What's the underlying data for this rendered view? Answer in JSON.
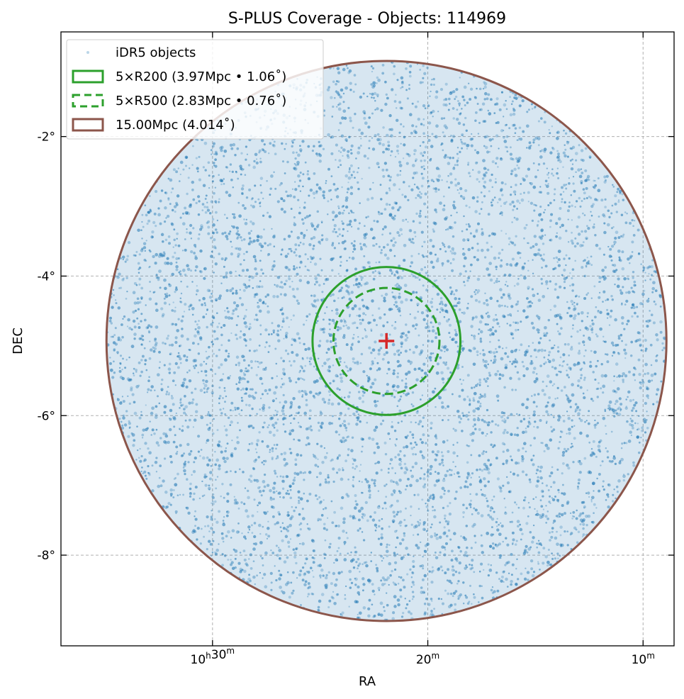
{
  "chart_data": {
    "type": "scatter",
    "title": "S-PLUS Coverage - Objects: 114969",
    "xlabel": "RA",
    "ylabel": "DEC",
    "x_axis": "RA (degrees, increasing to the left)",
    "xlim_deg": [
      159.26,
      152.14
    ],
    "ylim_deg": [
      -9.3,
      -0.5
    ],
    "x_ticks": [
      {
        "value": 157.5,
        "label_main": "10",
        "label_h": "h",
        "label_min": "30",
        "label_m": "m"
      },
      {
        "value": 155.0,
        "label_main": "",
        "label_h": "",
        "label_min": "20",
        "label_m": "m"
      },
      {
        "value": 152.5,
        "label_main": "",
        "label_h": "",
        "label_min": "10",
        "label_m": "m"
      }
    ],
    "y_ticks": [
      {
        "value": -2,
        "label": "-2°"
      },
      {
        "value": -4,
        "label": "-4°"
      },
      {
        "value": -6,
        "label": "-6°"
      },
      {
        "value": -8,
        "label": "-8°"
      }
    ],
    "grid": true,
    "legend_placement": "top-left",
    "center": {
      "ra": 155.48,
      "dec": -4.93
    },
    "series": [
      {
        "name": "iDR5 objects",
        "kind": "points",
        "color": "#1f77b4",
        "count": 114969,
        "region": "circle of radius 4.014° about the center"
      },
      {
        "name": "5×R200 (3.97Mpc • 1.06˚)",
        "kind": "circle",
        "radius_deg": 1.06,
        "color": "#2ca02c",
        "linestyle": "solid"
      },
      {
        "name": "5×R500 (2.83Mpc • 0.76˚)",
        "kind": "circle",
        "radius_deg": 0.76,
        "color": "#2ca02c",
        "linestyle": "dashed"
      },
      {
        "name": "15.00Mpc (4.014˚)",
        "kind": "circle",
        "radius_deg": 4.014,
        "color": "#8c564b",
        "linestyle": "solid"
      }
    ],
    "center_marker": {
      "symbol": "+",
      "color": "#d62728"
    }
  },
  "colors": {
    "points": "#1f77b4",
    "green": "#2ca02c",
    "brown": "#8c564b",
    "center": "#d62728",
    "grid": "#b0b0b0"
  }
}
